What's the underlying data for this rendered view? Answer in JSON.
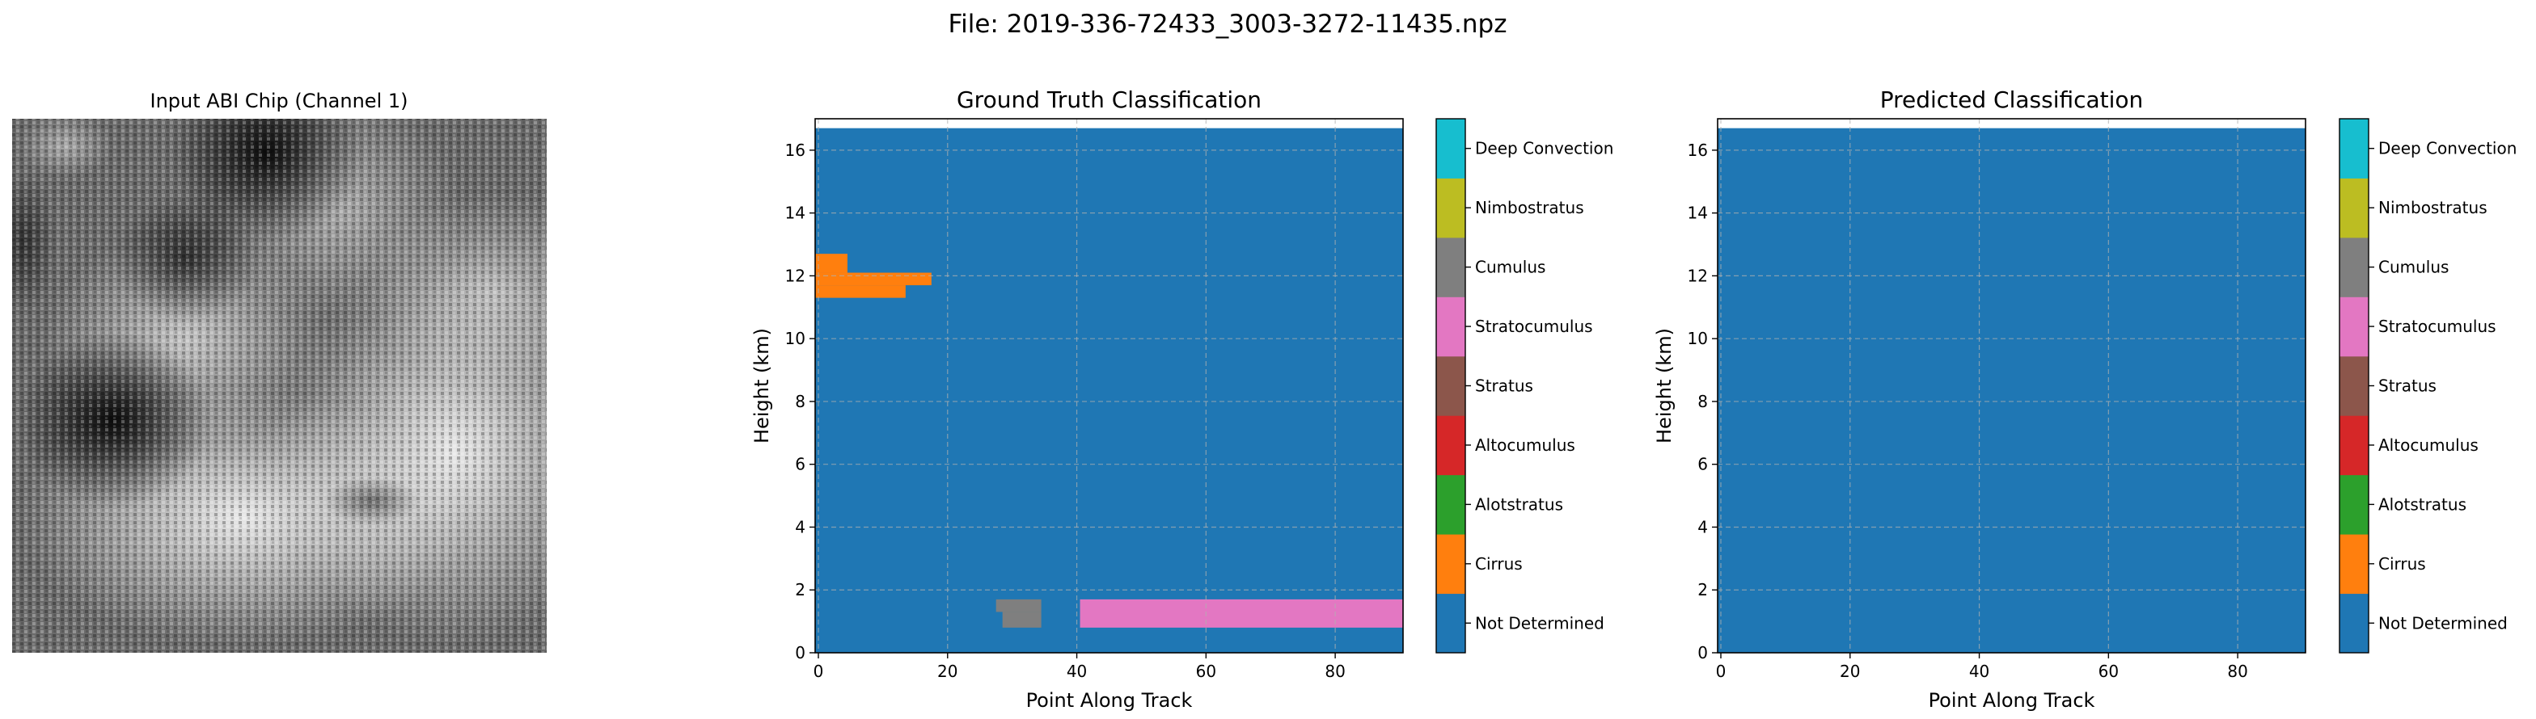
{
  "figure": {
    "suptitle": "File: 2019-336-72433_3003-3272-11435.npz"
  },
  "image_panel": {
    "title": "Input ABI Chip (Channel 1)"
  },
  "chart_data": [
    {
      "type": "heatmap",
      "title": "Ground Truth Classification",
      "xlabel": "Point Along Track",
      "ylabel": "Height (km)",
      "xlim": [
        -0.5,
        90.5
      ],
      "ylim": [
        0,
        17
      ],
      "xticks": [
        0,
        20,
        40,
        60,
        80
      ],
      "yticks": [
        0,
        2,
        4,
        6,
        8,
        10,
        12,
        14,
        16
      ],
      "grid": true,
      "background_class": "Not Determined",
      "data_top_km": 16.7,
      "regions": [
        {
          "class": "Cirrus",
          "x0": -0.5,
          "x1": 4.5,
          "y0": 12.1,
          "y1": 12.7
        },
        {
          "class": "Cirrus",
          "x0": -0.5,
          "x1": 17.5,
          "y0": 11.7,
          "y1": 12.1
        },
        {
          "class": "Cirrus",
          "x0": -0.5,
          "x1": 13.5,
          "y0": 11.3,
          "y1": 11.7
        },
        {
          "class": "Cumulus",
          "x0": 27.5,
          "x1": 34.5,
          "y0": 1.3,
          "y1": 1.7
        },
        {
          "class": "Cumulus",
          "x0": 28.5,
          "x1": 34.5,
          "y0": 0.8,
          "y1": 1.3
        },
        {
          "class": "Stratocumulus",
          "x0": 40.5,
          "x1": 90.5,
          "y0": 0.8,
          "y1": 1.7
        }
      ]
    },
    {
      "type": "heatmap",
      "title": "Predicted Classification",
      "xlabel": "Point Along Track",
      "ylabel": "Height (km)",
      "xlim": [
        -0.5,
        90.5
      ],
      "ylim": [
        0,
        17
      ],
      "xticks": [
        0,
        20,
        40,
        60,
        80
      ],
      "yticks": [
        0,
        2,
        4,
        6,
        8,
        10,
        12,
        14,
        16
      ],
      "grid": true,
      "background_class": "Not Determined",
      "data_top_km": 16.7,
      "regions": []
    }
  ],
  "colorbar": {
    "classes": [
      {
        "label": "Not Determined",
        "color": "#1f77b4"
      },
      {
        "label": "Cirrus",
        "color": "#ff7f0e"
      },
      {
        "label": "Alotstratus",
        "color": "#2ca02c"
      },
      {
        "label": "Altocumulus",
        "color": "#d62728"
      },
      {
        "label": "Stratus",
        "color": "#8c564b"
      },
      {
        "label": "Stratocumulus",
        "color": "#e377c2"
      },
      {
        "label": "Cumulus",
        "color": "#7f7f7f"
      },
      {
        "label": "Nimbostratus",
        "color": "#bcbd22"
      },
      {
        "label": "Deep Convection",
        "color": "#17becf"
      }
    ]
  }
}
